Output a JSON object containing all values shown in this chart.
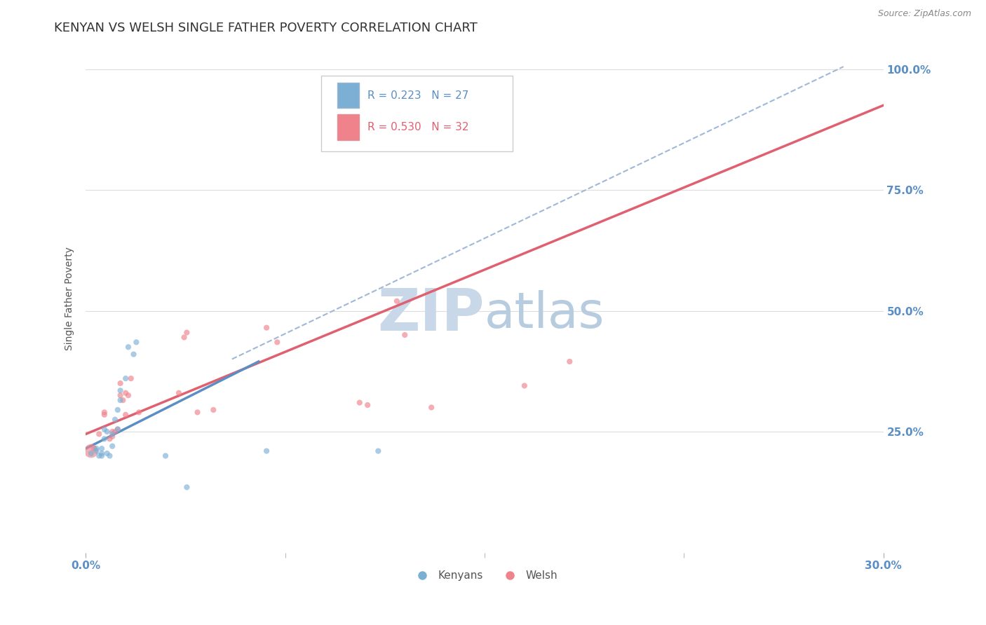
{
  "title": "KENYAN VS WELSH SINGLE FATHER POVERTY CORRELATION CHART",
  "source": "Source: ZipAtlas.com",
  "ylabel": "Single Father Poverty",
  "xlim": [
    0.0,
    0.3
  ],
  "ylim": [
    0.0,
    1.05
  ],
  "xtick_labels": [
    "0.0%",
    "30.0%"
  ],
  "ytick_labels": [
    "25.0%",
    "50.0%",
    "75.0%",
    "100.0%"
  ],
  "ytick_values": [
    0.25,
    0.5,
    0.75,
    1.0
  ],
  "legend_r1": "R = 0.223",
  "legend_n1": "N = 27",
  "legend_r2": "R = 0.530",
  "legend_n2": "N = 32",
  "color_kenyan": "#7bafd4",
  "color_welsh": "#f0828c",
  "color_kenyan_line": "#5b8ec4",
  "color_welsh_line": "#e06070",
  "color_dashed": "#a0b8d8",
  "background_color": "#ffffff",
  "grid_color": "#dddddd",
  "title_color": "#333333",
  "axis_label_color": "#5b8ec4",
  "kenyan_x": [
    0.002,
    0.004,
    0.004,
    0.005,
    0.006,
    0.006,
    0.006,
    0.007,
    0.007,
    0.008,
    0.008,
    0.009,
    0.01,
    0.01,
    0.011,
    0.012,
    0.012,
    0.013,
    0.013,
    0.015,
    0.016,
    0.018,
    0.019,
    0.03,
    0.038,
    0.068,
    0.11
  ],
  "kenyan_y": [
    0.205,
    0.215,
    0.21,
    0.2,
    0.205,
    0.2,
    0.215,
    0.235,
    0.255,
    0.25,
    0.205,
    0.2,
    0.22,
    0.245,
    0.275,
    0.295,
    0.255,
    0.335,
    0.315,
    0.36,
    0.425,
    0.41,
    0.435,
    0.2,
    0.135,
    0.21,
    0.21
  ],
  "kenyan_sizes": [
    35,
    35,
    35,
    35,
    35,
    35,
    35,
    35,
    35,
    35,
    35,
    35,
    35,
    35,
    35,
    35,
    35,
    35,
    35,
    35,
    35,
    35,
    35,
    35,
    35,
    35,
    35
  ],
  "welsh_x": [
    0.002,
    0.003,
    0.005,
    0.007,
    0.007,
    0.009,
    0.01,
    0.01,
    0.011,
    0.012,
    0.013,
    0.013,
    0.014,
    0.015,
    0.015,
    0.016,
    0.017,
    0.02,
    0.035,
    0.037,
    0.038,
    0.042,
    0.048,
    0.068,
    0.072,
    0.103,
    0.106,
    0.117,
    0.12,
    0.13,
    0.165,
    0.182
  ],
  "welsh_y": [
    0.21,
    0.215,
    0.245,
    0.285,
    0.29,
    0.235,
    0.24,
    0.25,
    0.25,
    0.255,
    0.35,
    0.325,
    0.315,
    0.285,
    0.33,
    0.325,
    0.36,
    0.29,
    0.33,
    0.445,
    0.455,
    0.29,
    0.295,
    0.465,
    0.435,
    0.31,
    0.305,
    0.52,
    0.45,
    0.3,
    0.345,
    0.395
  ],
  "welsh_sizes": [
    200,
    35,
    35,
    35,
    35,
    35,
    35,
    35,
    35,
    35,
    35,
    35,
    35,
    35,
    35,
    35,
    35,
    35,
    35,
    35,
    35,
    35,
    35,
    35,
    35,
    35,
    35,
    35,
    35,
    35,
    35,
    35
  ],
  "kenyan_line_x": [
    0.0,
    0.065
  ],
  "kenyan_line_y": [
    0.215,
    0.395
  ],
  "welsh_line_x": [
    0.0,
    0.3
  ],
  "welsh_line_y": [
    0.245,
    0.925
  ],
  "dashed_line_x": [
    0.055,
    0.285
  ],
  "dashed_line_y": [
    0.4,
    1.005
  ],
  "watermark_zip": "ZIP",
  "watermark_atlas": "atlas",
  "watermark_color_zip": "#c8d8e8",
  "watermark_color_atlas": "#b8cce0",
  "watermark_fontsize": 60
}
